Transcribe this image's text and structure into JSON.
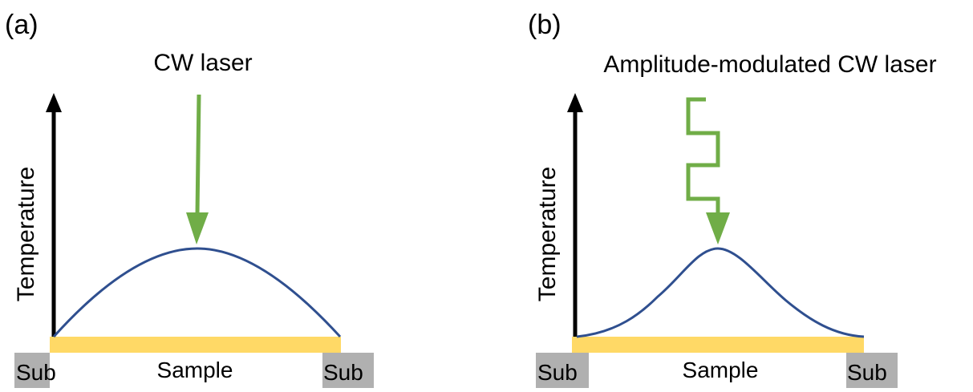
{
  "panels": [
    {
      "label": "(a)",
      "laser": "CW laser",
      "axis_label": "Temperature",
      "sample": "Sample",
      "sub_left": "Sub",
      "sub_right": "Sub"
    },
    {
      "label": "(b)",
      "laser": "Amplitude-modulated CW laser",
      "axis_label": "Temperature",
      "sample": "Sample",
      "sub_left": "Sub",
      "sub_right": "Sub"
    }
  ]
}
